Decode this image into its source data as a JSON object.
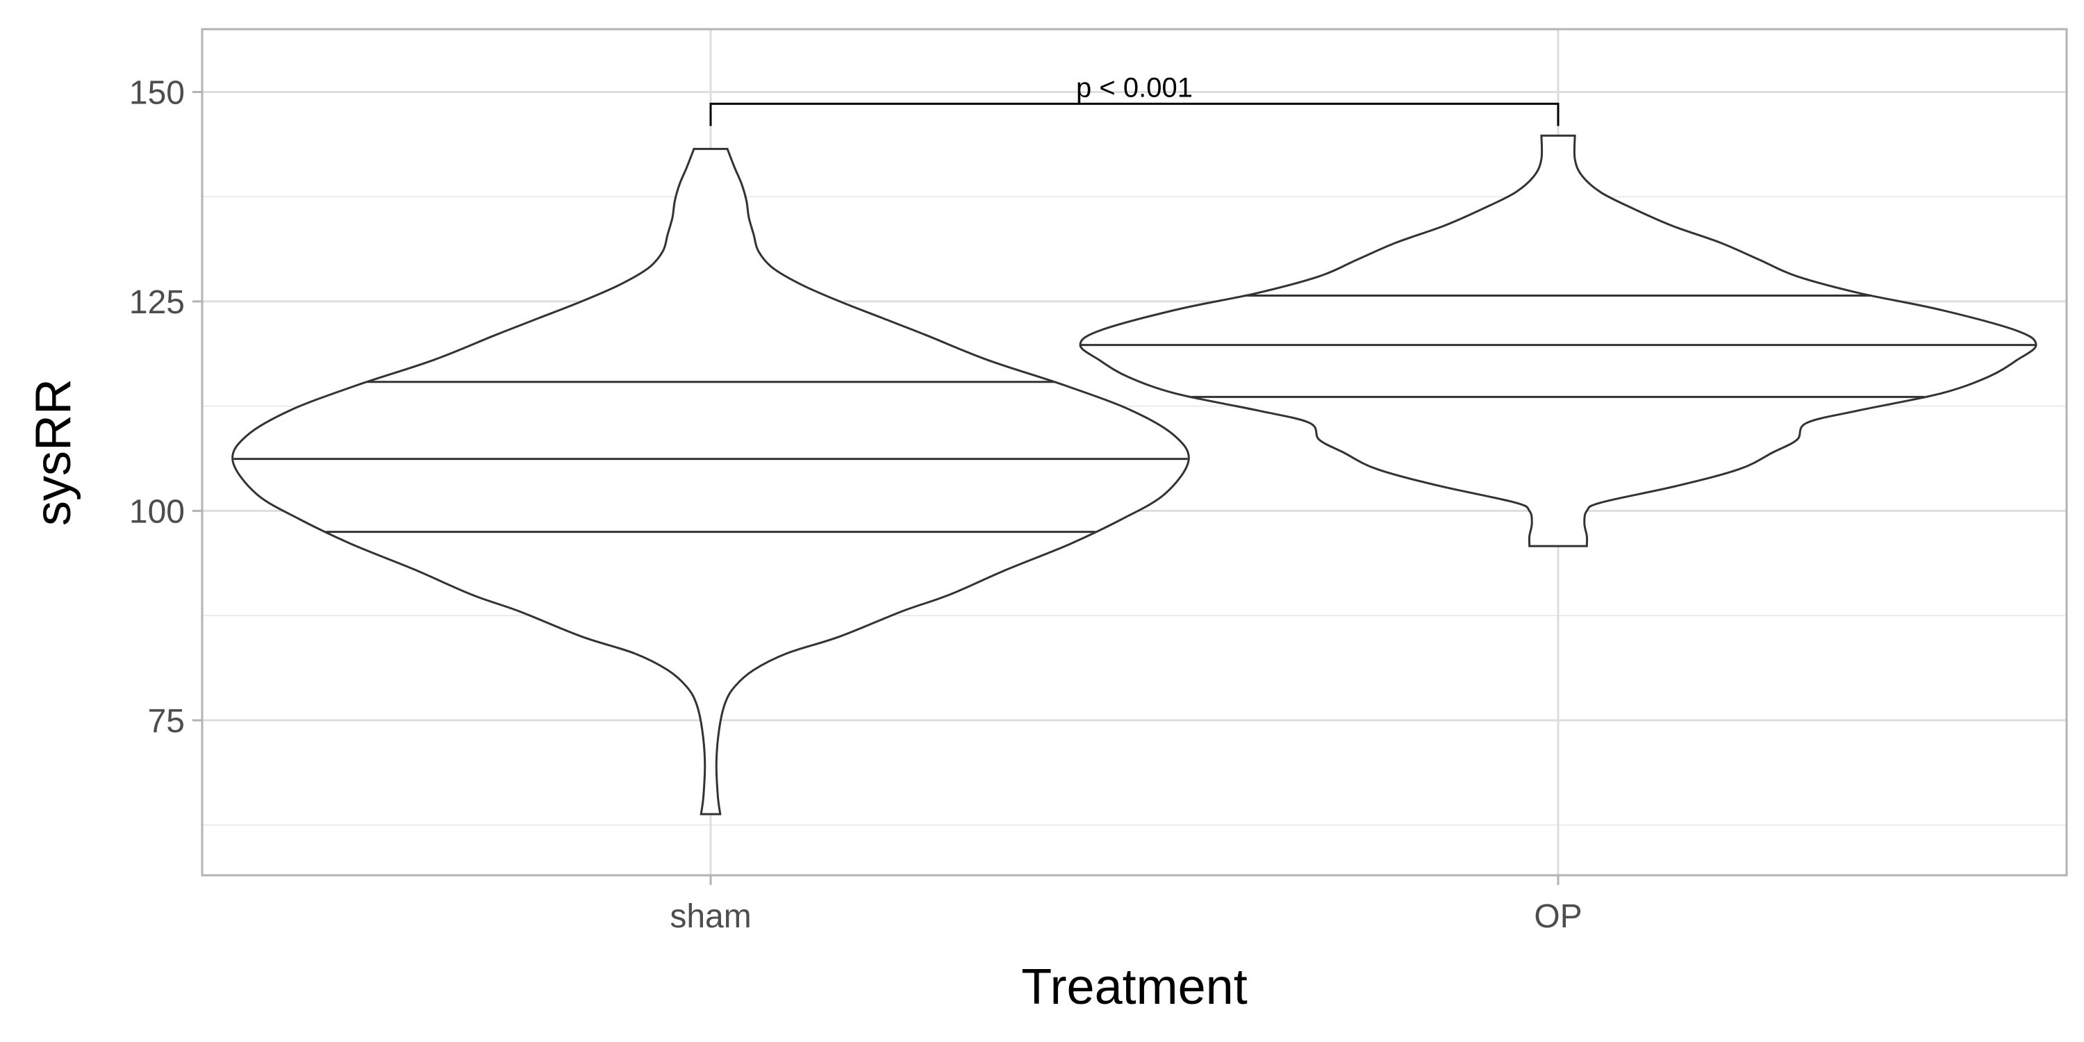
{
  "chart_data": {
    "type": "violin",
    "xlabel": "Treatment",
    "ylabel": "sysRR",
    "categories": [
      "sham",
      "OP"
    ],
    "ylim": [
      56.5,
      157.5
    ],
    "yticks": [
      75,
      100,
      125,
      150
    ],
    "grid": true,
    "violins": [
      {
        "category": "sham",
        "quantiles": {
          "q25": 97.5,
          "median": 106.2,
          "q75": 115.4
        },
        "range": [
          63.8,
          143.2
        ],
        "density": [
          [
            63.8,
            0.02
          ],
          [
            66,
            0.015
          ],
          [
            70,
            0.012
          ],
          [
            74,
            0.018
          ],
          [
            77,
            0.03
          ],
          [
            79,
            0.05
          ],
          [
            81,
            0.09
          ],
          [
            83,
            0.16
          ],
          [
            85,
            0.27
          ],
          [
            88,
            0.4
          ],
          [
            90,
            0.5
          ],
          [
            93,
            0.62
          ],
          [
            96,
            0.75
          ],
          [
            99,
            0.86
          ],
          [
            102,
            0.95
          ],
          [
            106,
            1.0
          ],
          [
            109,
            0.97
          ],
          [
            112,
            0.88
          ],
          [
            115,
            0.74
          ],
          [
            118,
            0.58
          ],
          [
            121,
            0.45
          ],
          [
            123,
            0.36
          ],
          [
            125,
            0.27
          ],
          [
            127,
            0.19
          ],
          [
            129,
            0.13
          ],
          [
            131,
            0.1
          ],
          [
            133,
            0.09
          ],
          [
            135,
            0.08
          ],
          [
            137,
            0.075
          ],
          [
            139,
            0.065
          ],
          [
            141,
            0.05
          ],
          [
            143.2,
            0.035
          ]
        ]
      },
      {
        "category": "OP",
        "quantiles": {
          "q25": 113.6,
          "median": 119.8,
          "q75": 125.7
        },
        "range": [
          95.8,
          144.8
        ],
        "density": [
          [
            95.8,
            0.06
          ],
          [
            97,
            0.06
          ],
          [
            98.5,
            0.055
          ],
          [
            100,
            0.06
          ],
          [
            101,
            0.09
          ],
          [
            103,
            0.25
          ],
          [
            105,
            0.38
          ],
          [
            107,
            0.45
          ],
          [
            108.5,
            0.5
          ],
          [
            110.5,
            0.52
          ],
          [
            112,
            0.63
          ],
          [
            114,
            0.8
          ],
          [
            116,
            0.9
          ],
          [
            118,
            0.96
          ],
          [
            119.8,
            1.0
          ],
          [
            121.5,
            0.96
          ],
          [
            124,
            0.8
          ],
          [
            126,
            0.63
          ],
          [
            128,
            0.5
          ],
          [
            130,
            0.42
          ],
          [
            132,
            0.34
          ],
          [
            134,
            0.24
          ],
          [
            136,
            0.16
          ],
          [
            138,
            0.09
          ],
          [
            140,
            0.05
          ],
          [
            142,
            0.035
          ],
          [
            144.8,
            0.035
          ]
        ]
      }
    ],
    "annotation": {
      "text": "p < 0.001",
      "from": "sham",
      "to": "OP",
      "y": 148.6
    }
  }
}
